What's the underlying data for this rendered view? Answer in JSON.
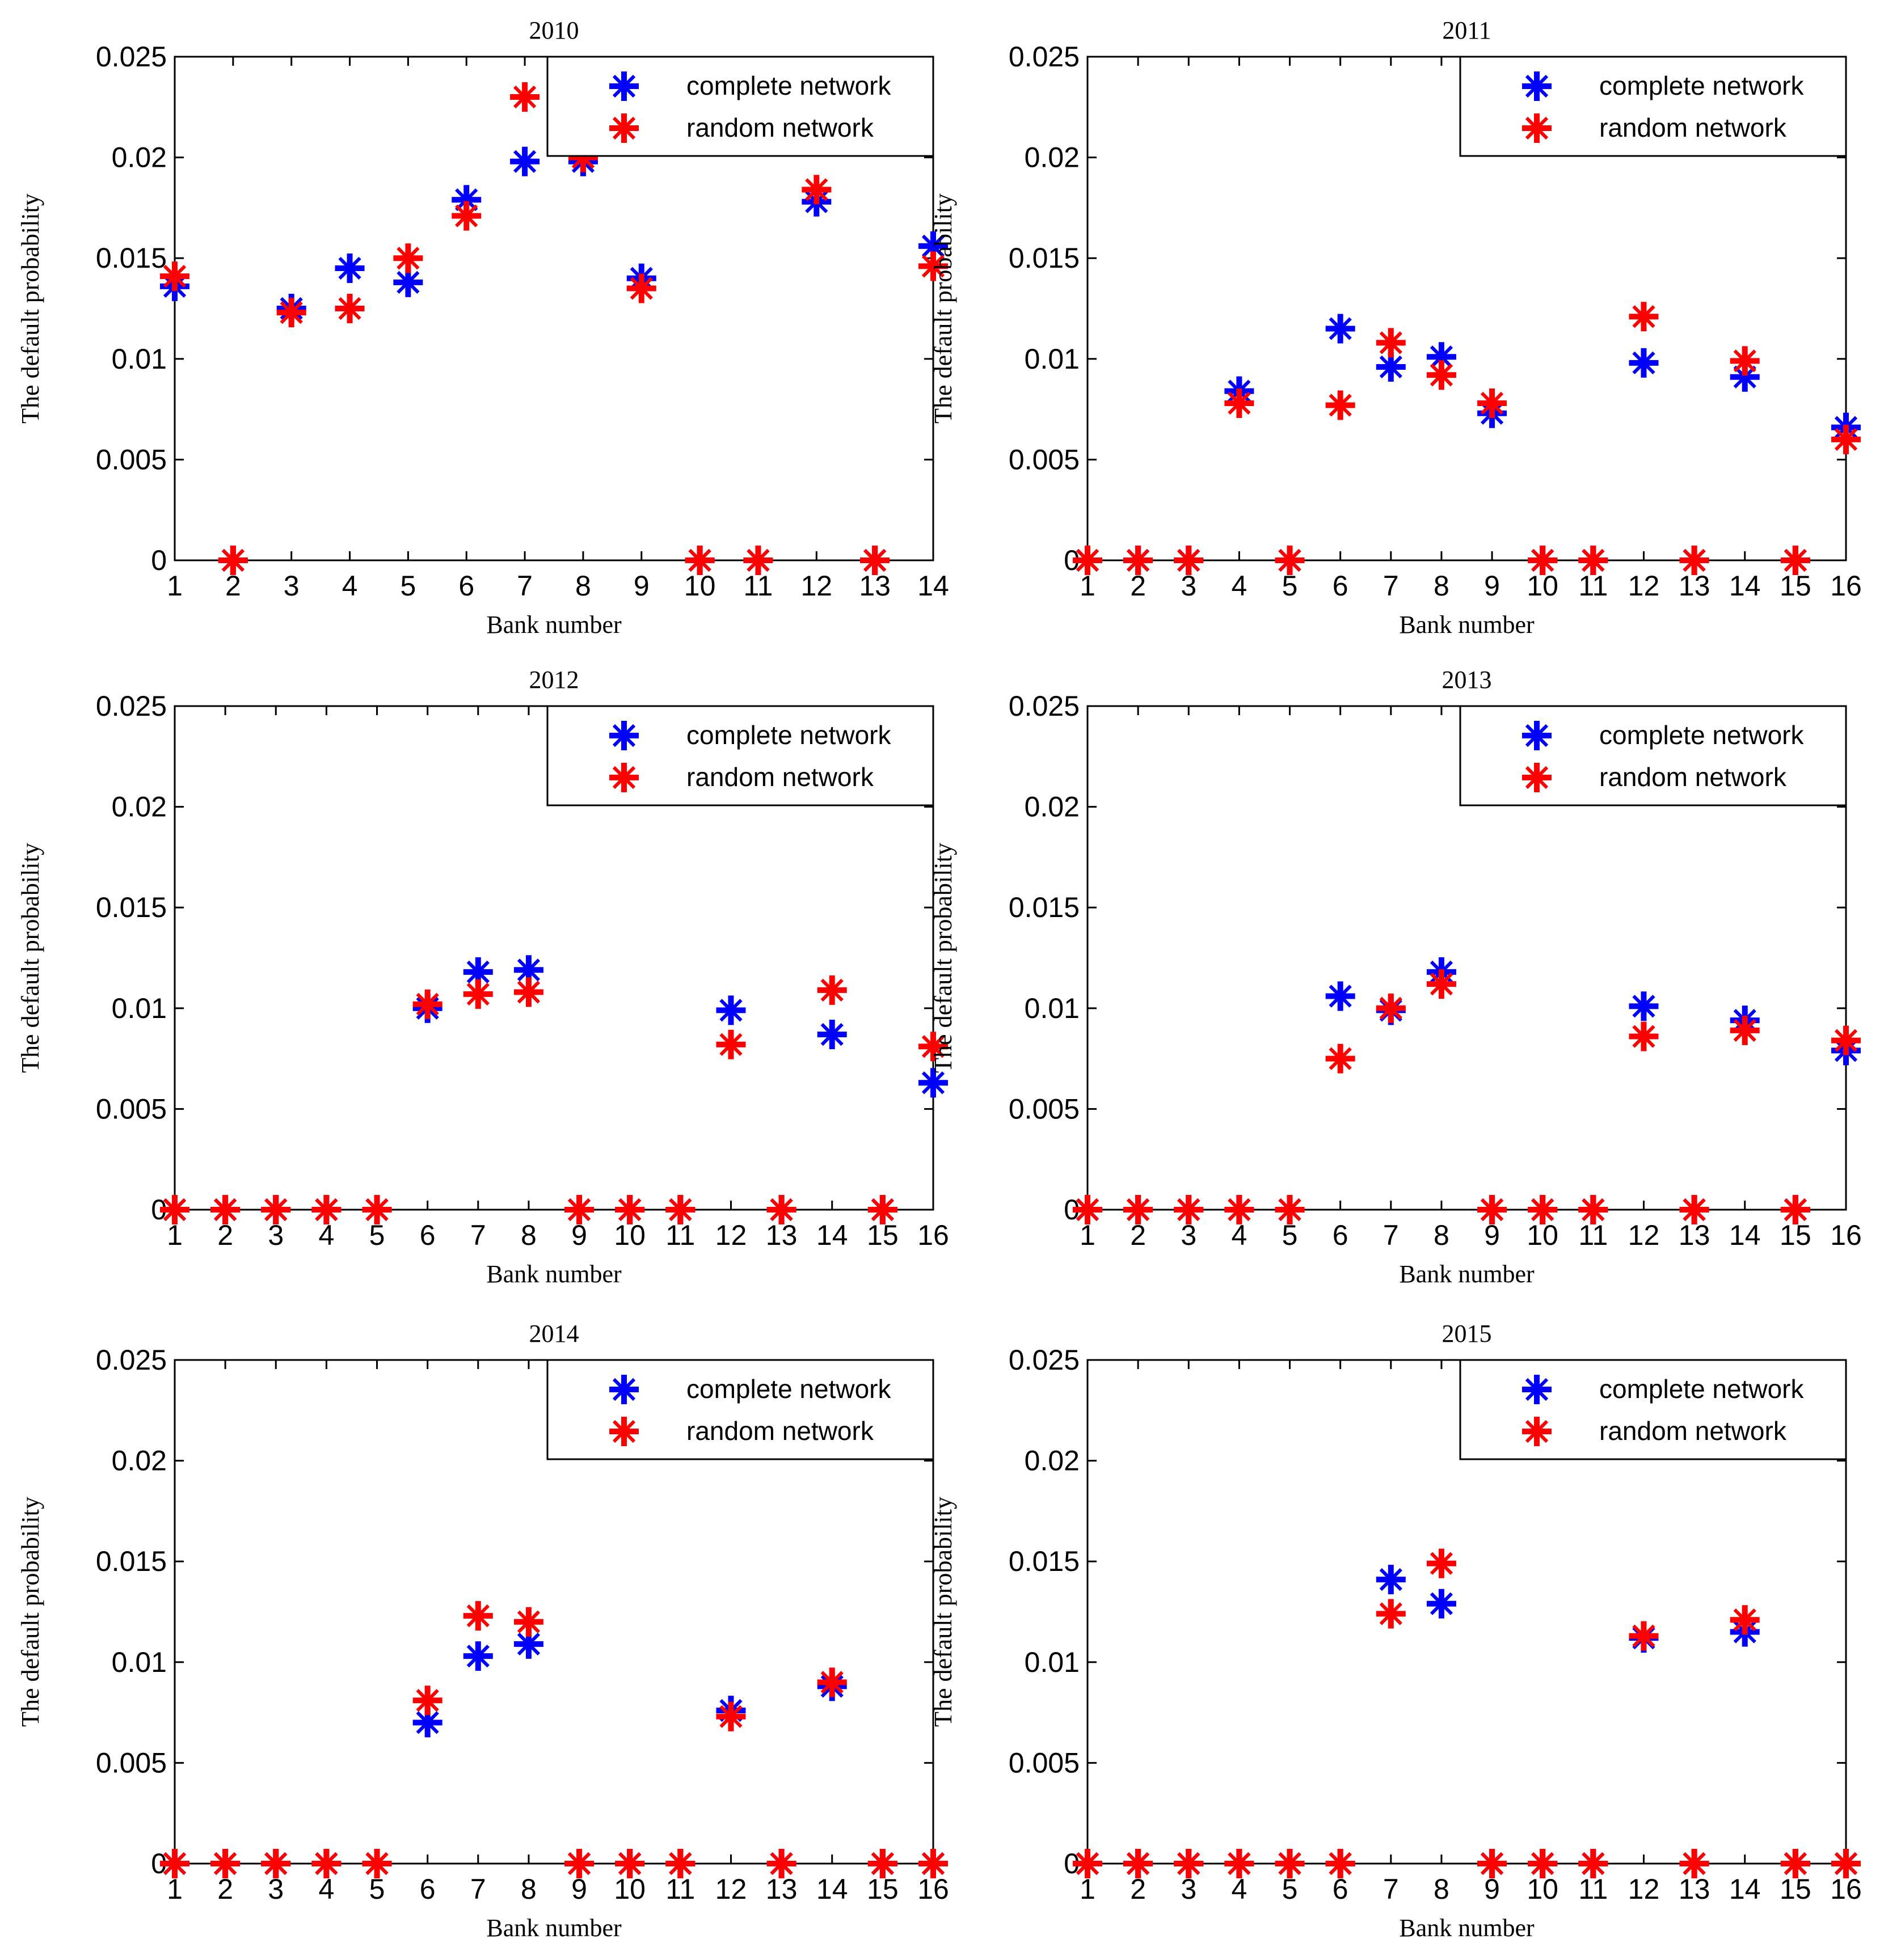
{
  "colors": {
    "complete": "#0000ff",
    "random": "#ff0000",
    "axis": "#000000"
  },
  "chart_data": [
    {
      "type": "scatter",
      "title": "2010",
      "xlabel": "Bank number",
      "ylabel": "The default probability",
      "ylim": [
        0,
        0.025
      ],
      "yticks": [
        "0",
        "0.005",
        "0.01",
        "0.015",
        "0.02",
        "0.025"
      ],
      "x": [
        1,
        2,
        3,
        4,
        5,
        6,
        7,
        8,
        9,
        10,
        11,
        12,
        13,
        14
      ],
      "legend": {
        "position": "top-right"
      },
      "series": [
        {
          "name": "complete network",
          "color": "#0000ff",
          "values": [
            0.0136,
            0,
            0.0125,
            0.0145,
            0.0138,
            0.0179,
            0.0198,
            0.0198,
            0.014,
            0,
            0,
            0.0178,
            0,
            0.0156
          ]
        },
        {
          "name": "random network",
          "color": "#ff0000",
          "values": [
            0.0141,
            0,
            0.0123,
            0.0125,
            0.015,
            0.0171,
            0.023,
            0.02,
            0.0135,
            0,
            0,
            0.0184,
            0,
            0.0146
          ]
        }
      ]
    },
    {
      "type": "scatter",
      "title": "2011",
      "xlabel": "Bank number",
      "ylabel": "The default probability",
      "ylim": [
        0,
        0.025
      ],
      "yticks": [
        "0",
        "0.005",
        "0.01",
        "0.015",
        "0.02",
        "0.025"
      ],
      "x": [
        1,
        2,
        3,
        4,
        5,
        6,
        7,
        8,
        9,
        10,
        11,
        12,
        13,
        14,
        15,
        16
      ],
      "legend": {
        "position": "top-right"
      },
      "series": [
        {
          "name": "complete network",
          "color": "#0000ff",
          "values": [
            0,
            0,
            0,
            0.0084,
            0,
            0.0115,
            0.0096,
            0.0101,
            0.0073,
            0,
            0,
            0.0098,
            0,
            0.0091,
            0,
            0.0066
          ]
        },
        {
          "name": "random network",
          "color": "#ff0000",
          "values": [
            0,
            0,
            0,
            0.0078,
            0,
            0.0077,
            0.0108,
            0.0092,
            0.0078,
            0,
            0,
            0.0121,
            0,
            0.0099,
            0,
            0.006
          ]
        }
      ]
    },
    {
      "type": "scatter",
      "title": "2012",
      "xlabel": "Bank number",
      "ylabel": "The default probability",
      "ylim": [
        0,
        0.025
      ],
      "yticks": [
        "0",
        "0.005",
        "0.01",
        "0.015",
        "0.02",
        "0.025"
      ],
      "x": [
        1,
        2,
        3,
        4,
        5,
        6,
        7,
        8,
        9,
        10,
        11,
        12,
        13,
        14,
        15,
        16
      ],
      "legend": {
        "position": "top-right"
      },
      "series": [
        {
          "name": "complete network",
          "color": "#0000ff",
          "values": [
            0,
            0,
            0,
            0,
            0,
            0.01,
            0.0118,
            0.0119,
            0,
            0,
            0,
            0.0099,
            0,
            0.0087,
            0,
            0.0063
          ]
        },
        {
          "name": "random network",
          "color": "#ff0000",
          "values": [
            0,
            0,
            0,
            0,
            0,
            0.0102,
            0.0107,
            0.0108,
            0,
            0,
            0,
            0.0082,
            0,
            0.0109,
            0,
            0.0081
          ]
        }
      ]
    },
    {
      "type": "scatter",
      "title": "2013",
      "xlabel": "Bank number",
      "ylabel": "The default probability",
      "ylim": [
        0,
        0.025
      ],
      "yticks": [
        "0",
        "0.005",
        "0.01",
        "0.015",
        "0.02",
        "0.025"
      ],
      "x": [
        1,
        2,
        3,
        4,
        5,
        6,
        7,
        8,
        9,
        10,
        11,
        12,
        13,
        14,
        15,
        16
      ],
      "legend": {
        "position": "top-right"
      },
      "series": [
        {
          "name": "complete network",
          "color": "#0000ff",
          "values": [
            0,
            0,
            0,
            0,
            0,
            0.0106,
            0.0099,
            0.0118,
            0,
            0,
            0,
            0.0101,
            0,
            0.0094,
            0,
            0.0079
          ]
        },
        {
          "name": "random network",
          "color": "#ff0000",
          "values": [
            0,
            0,
            0,
            0,
            0,
            0.0075,
            0.01,
            0.0112,
            0,
            0,
            0,
            0.0086,
            0,
            0.0089,
            0,
            0.0084
          ]
        }
      ]
    },
    {
      "type": "scatter",
      "title": "2014",
      "xlabel": "Bank number",
      "ylabel": "The default probability",
      "ylim": [
        0,
        0.025
      ],
      "yticks": [
        "0",
        "0.005",
        "0.01",
        "0.015",
        "0.02",
        "0.025"
      ],
      "x": [
        1,
        2,
        3,
        4,
        5,
        6,
        7,
        8,
        9,
        10,
        11,
        12,
        13,
        14,
        15,
        16
      ],
      "legend": {
        "position": "top-right"
      },
      "series": [
        {
          "name": "complete network",
          "color": "#0000ff",
          "values": [
            0,
            0,
            0,
            0,
            0,
            0.007,
            0.0103,
            0.0109,
            0,
            0,
            0,
            0.0076,
            0,
            0.0088,
            0,
            0
          ]
        },
        {
          "name": "random network",
          "color": "#ff0000",
          "values": [
            0,
            0,
            0,
            0,
            0,
            0.0081,
            0.0123,
            0.012,
            0,
            0,
            0,
            0.0073,
            0,
            0.009,
            0,
            0
          ]
        }
      ]
    },
    {
      "type": "scatter",
      "title": "2015",
      "xlabel": "Bank number",
      "ylabel": "The default probability",
      "ylim": [
        0,
        0.025
      ],
      "yticks": [
        "0",
        "0.005",
        "0.01",
        "0.015",
        "0.02",
        "0.025"
      ],
      "x": [
        1,
        2,
        3,
        4,
        5,
        6,
        7,
        8,
        9,
        10,
        11,
        12,
        13,
        14,
        15,
        16
      ],
      "legend": {
        "position": "top-right"
      },
      "series": [
        {
          "name": "complete network",
          "color": "#0000ff",
          "values": [
            0,
            0,
            0,
            0,
            0,
            0,
            0.0141,
            0.0129,
            0,
            0,
            0,
            0.0112,
            0,
            0.0115,
            0,
            0
          ]
        },
        {
          "name": "random network",
          "color": "#ff0000",
          "values": [
            0,
            0,
            0,
            0,
            0,
            0,
            0.0124,
            0.0149,
            0,
            0,
            0,
            0.0113,
            0,
            0.0121,
            0,
            0
          ]
        }
      ]
    }
  ]
}
